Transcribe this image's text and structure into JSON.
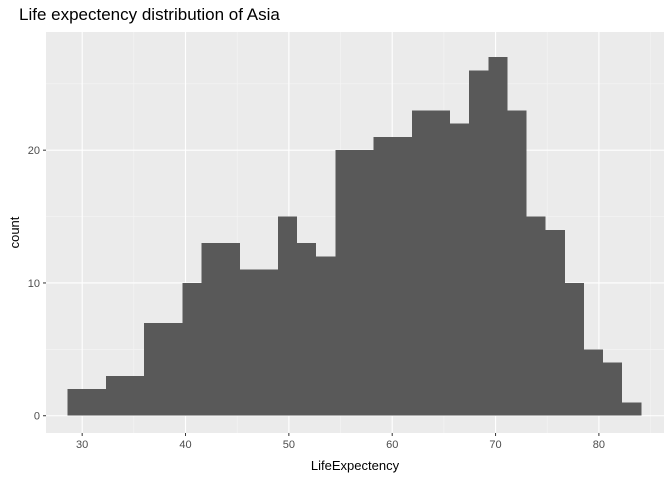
{
  "chart_data": {
    "type": "bar",
    "title": "Life expectency distribution of Asia",
    "xlabel": "LifeExpectency",
    "ylabel": "count",
    "xlim": [
      26.5,
      86.3
    ],
    "ylim": [
      -1.3,
      28.9
    ],
    "x_ticks": [
      30,
      40,
      50,
      60,
      70,
      80
    ],
    "y_ticks": [
      0,
      10,
      20
    ],
    "bin_start": 28.6,
    "bin_width": 1.85,
    "values": [
      2,
      2,
      3,
      3,
      7,
      7,
      10,
      13,
      13,
      11,
      11,
      15,
      13,
      12,
      20,
      20,
      21,
      21,
      23,
      23,
      22,
      26,
      27,
      23,
      15,
      14,
      10,
      5,
      4,
      1
    ],
    "bar_color": "#595959",
    "panel_color": "#ebebeb",
    "grid": true
  }
}
